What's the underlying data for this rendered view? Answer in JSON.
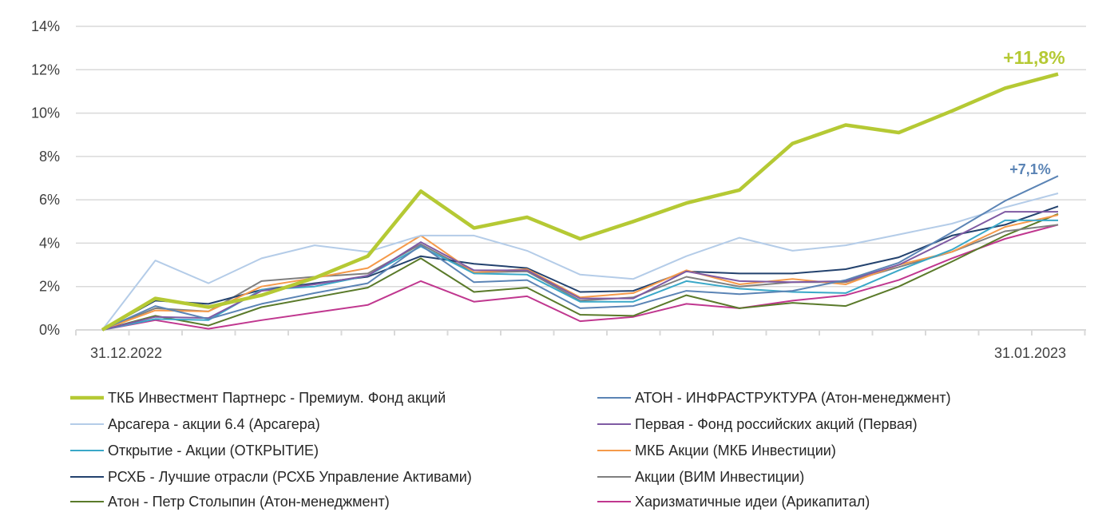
{
  "chart_data": {
    "type": "line",
    "title": "",
    "xlabel": "",
    "ylabel": "",
    "ylim": [
      0,
      14
    ],
    "yticks": [
      "0%",
      "2%",
      "4%",
      "6%",
      "8%",
      "10%",
      "12%",
      "14%"
    ],
    "ytick_values": [
      0,
      2,
      4,
      6,
      8,
      10,
      12,
      14
    ],
    "x_labels": {
      "start": "31.12.2022",
      "end": "31.01.2023"
    },
    "n_points": 19,
    "grid": true,
    "legend_position": "bottom",
    "series": [
      {
        "name": "ТКБ Инвестмент Партнерс - Премиум. Фонд акций",
        "color": "#b5c934",
        "emphasis": true,
        "values": [
          0,
          1.45,
          1.05,
          1.6,
          2.4,
          3.4,
          6.4,
          4.7,
          5.2,
          4.2,
          5.0,
          5.85,
          6.45,
          8.6,
          9.45,
          9.1,
          10.1,
          11.15,
          11.8
        ]
      },
      {
        "name": "АТОН - ИНФРАСТРУКТУРА (Атон-менеджмент)",
        "color": "#5b84b5",
        "values": [
          0,
          1.1,
          0.5,
          1.2,
          1.7,
          2.15,
          3.9,
          2.2,
          2.3,
          1.0,
          1.1,
          1.8,
          1.65,
          1.8,
          2.3,
          3.1,
          4.5,
          5.95,
          7.1
        ]
      },
      {
        "name": "Арсагера - акции 6.4 (Арсагера)",
        "color": "#b4cce8",
        "values": [
          0,
          3.2,
          2.15,
          3.3,
          3.9,
          3.6,
          4.35,
          4.35,
          3.65,
          2.55,
          2.35,
          3.4,
          4.25,
          3.65,
          3.9,
          4.4,
          4.9,
          5.65,
          6.3
        ]
      },
      {
        "name": "Первая - Фонд российских акций (Первая)",
        "color": "#7f5aa3",
        "values": [
          0,
          0.6,
          0.55,
          1.8,
          2.1,
          2.5,
          4.05,
          2.75,
          2.75,
          1.45,
          1.45,
          2.7,
          2.25,
          2.2,
          2.25,
          3.0,
          4.2,
          5.45,
          5.45
        ]
      },
      {
        "name": "Открытие - Акции (ОТКРЫТИЕ)",
        "color": "#3aa8c8",
        "values": [
          0,
          0.5,
          0.45,
          1.85,
          2.0,
          2.5,
          3.85,
          2.6,
          2.55,
          1.3,
          1.3,
          2.25,
          1.9,
          1.75,
          1.7,
          2.75,
          3.7,
          5.05,
          5.05
        ]
      },
      {
        "name": "МКБ Акции (МКБ Инвестиции)",
        "color": "#f59a4a",
        "values": [
          0,
          0.9,
          0.85,
          2.0,
          2.4,
          2.85,
          4.35,
          2.65,
          2.8,
          1.5,
          1.7,
          2.75,
          2.1,
          2.35,
          2.1,
          3.0,
          3.6,
          4.75,
          5.3
        ]
      },
      {
        "name": "РСХБ - Лучшие отрасли (РСХБ Управление Активами)",
        "color": "#23426e",
        "values": [
          0,
          1.35,
          1.2,
          1.85,
          2.15,
          2.45,
          3.4,
          3.05,
          2.85,
          1.75,
          1.8,
          2.7,
          2.6,
          2.6,
          2.8,
          3.35,
          4.35,
          4.85,
          5.7
        ]
      },
      {
        "name": "Акции (ВИМ Инвестиции)",
        "color": "#7f7f7f",
        "values": [
          0,
          1.0,
          0.85,
          2.25,
          2.45,
          2.6,
          3.95,
          2.65,
          2.7,
          1.35,
          1.5,
          2.45,
          2.0,
          2.2,
          2.2,
          2.9,
          3.6,
          4.55,
          4.85
        ]
      },
      {
        "name": "Атон - Петр Столыпин (Атон-менеджмент)",
        "color": "#5a7a2a",
        "values": [
          0,
          0.65,
          0.2,
          1.05,
          1.5,
          1.95,
          3.3,
          1.75,
          1.95,
          0.7,
          0.65,
          1.6,
          1.0,
          1.25,
          1.1,
          2.0,
          3.15,
          4.35,
          5.35
        ]
      },
      {
        "name": "Харизматичные идеи (Арикапитал)",
        "color": "#c0378f",
        "values": [
          0,
          0.45,
          0.05,
          0.45,
          0.8,
          1.15,
          2.25,
          1.3,
          1.55,
          0.4,
          0.6,
          1.2,
          1.0,
          1.35,
          1.6,
          2.3,
          3.3,
          4.2,
          4.85
        ]
      }
    ],
    "annotations": [
      {
        "text": "+11,8%",
        "series": 0,
        "color": "#b5c934"
      },
      {
        "text": "+7,1%",
        "series": 1,
        "color": "#5b84b5"
      }
    ]
  }
}
